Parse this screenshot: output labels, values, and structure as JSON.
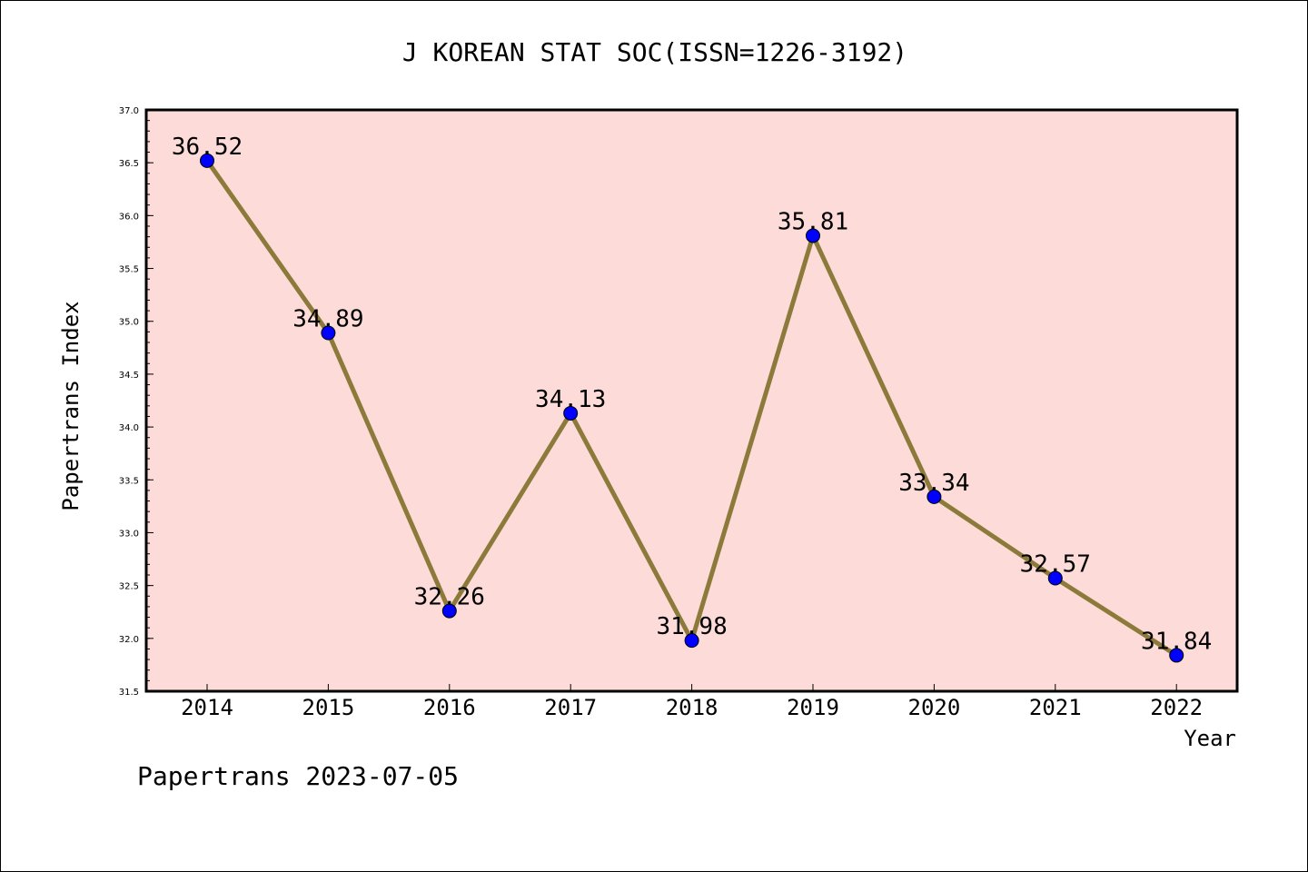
{
  "chart_data": {
    "type": "line",
    "title": "J KOREAN STAT SOC(ISSN=1226-3192)",
    "xlabel": "Year",
    "ylabel": "Papertrans Index",
    "categories": [
      "2014",
      "2015",
      "2016",
      "2017",
      "2018",
      "2019",
      "2020",
      "2021",
      "2022"
    ],
    "values": [
      36.52,
      34.89,
      32.26,
      34.13,
      31.98,
      35.81,
      33.34,
      32.57,
      31.84
    ],
    "data_labels": [
      "36.52",
      "34.89",
      "32.26",
      "34.13",
      "31.98",
      "35.81",
      "33.34",
      "32.57",
      "31.84"
    ],
    "ylim": [
      31.5,
      37.0
    ],
    "y_ticks": [
      "31.5",
      "32.0",
      "32.5",
      "33.0",
      "33.5",
      "34.0",
      "34.5",
      "35.0",
      "35.5",
      "36.0",
      "36.5",
      "37.0"
    ],
    "grid": false,
    "colors": {
      "plot_background": "#fddbd8",
      "line": "#8c7a3a",
      "marker": "#0000ff"
    }
  },
  "footer": "Papertrans 2023-07-05"
}
